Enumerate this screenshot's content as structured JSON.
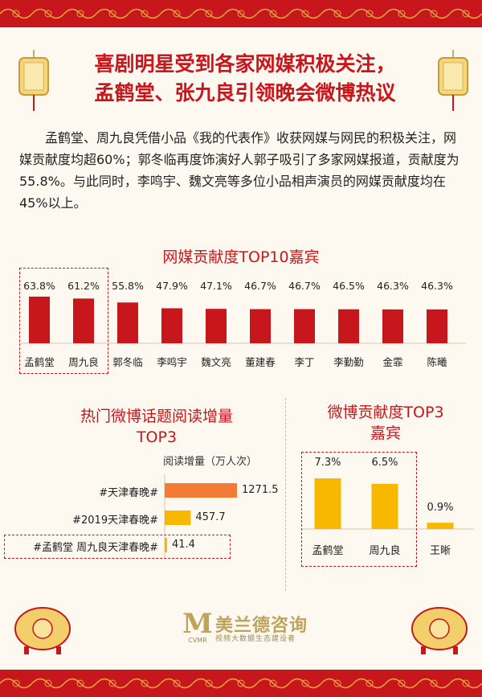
{
  "headline": {
    "line1": "喜剧明星受到各家网媒积极关注，",
    "line2": "孟鹤堂、张九良引领晚会微博热议"
  },
  "intro": "孟鹤堂、周九良凭借小品《我的代表作》收获网媒与网民的积极关注，网媒贡献度均超60%；郭冬临再度饰演好人郭子吸引了多家网媒报道，贡献度为55.8%。与此同时，李鸣宇、魏文亮等多位小品相声演员的网媒贡献度均在45%以上。",
  "colors": {
    "red": "#c8161d",
    "orange": "#f37b35",
    "yellow": "#f9b800",
    "gold": "#c0a35a"
  },
  "chart_data": [
    {
      "type": "bar",
      "title": "网媒贡献度TOP10嘉宾",
      "categories": [
        "孟鹤堂",
        "周九良",
        "郭冬临",
        "李鸣宇",
        "魏文亮",
        "董建春",
        "李丁",
        "李勤勤",
        "金霏",
        "陈曦"
      ],
      "values": [
        63.8,
        61.2,
        55.8,
        47.9,
        47.1,
        46.7,
        46.7,
        46.5,
        46.3,
        46.3
      ],
      "labels": [
        "63.8%",
        "61.2%",
        "55.8%",
        "47.9%",
        "47.1%",
        "46.7%",
        "46.7%",
        "46.5%",
        "46.3%",
        "46.3%"
      ],
      "highlighted": [
        "孟鹤堂",
        "周九良"
      ]
    },
    {
      "type": "bar",
      "orientation": "horizontal",
      "title_line1": "热门微博话题阅读增量",
      "title_line2": "TOP3",
      "unit_label": "阅读增量（万人次）",
      "categories": [
        "#天津春晚#",
        "#2019天津春晚#",
        "#孟鹤堂 周九良天津春晚#"
      ],
      "values": [
        1271.5,
        457.7,
        41.4
      ],
      "labels": [
        "1271.5",
        "457.7",
        "41.4"
      ],
      "highlighted": [
        "#孟鹤堂 周九良天津春晚#"
      ]
    },
    {
      "type": "bar",
      "title_line1": "微博贡献度TOP3",
      "title_line2": "嘉宾",
      "categories": [
        "孟鹤堂",
        "周九良",
        "王晰"
      ],
      "values": [
        7.3,
        6.5,
        0.9
      ],
      "labels": [
        "7.3%",
        "6.5%",
        "0.9%"
      ],
      "highlighted": [
        "孟鹤堂",
        "周九良"
      ]
    }
  ],
  "logo": {
    "name": "美兰德咨询",
    "tagline": "视频大数据生态建设者",
    "monogram": "M",
    "sub_monogram": "CVMR"
  }
}
